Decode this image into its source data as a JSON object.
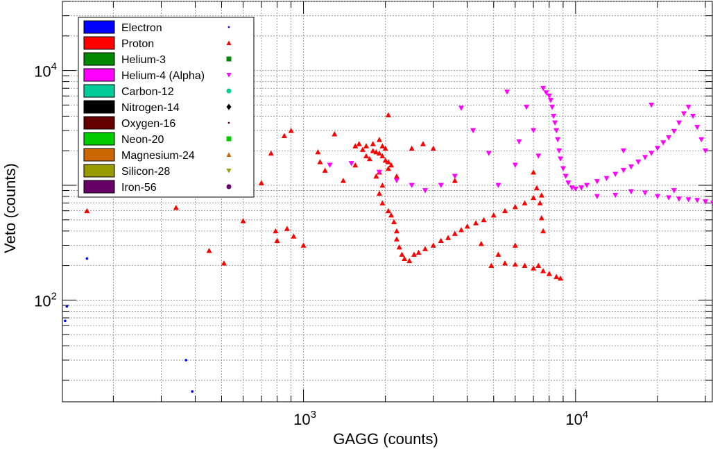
{
  "chart_data": {
    "type": "scatter",
    "xlabel": "GAGG (counts)",
    "ylabel": "Veto (counts)",
    "xscale": "log",
    "yscale": "log",
    "xlim": [
      130,
      32000
    ],
    "ylim": [
      13,
      40000
    ],
    "grid": true,
    "legend_position": "top-left",
    "x_major_ticks": [
      {
        "value": 1000,
        "base": "10",
        "exp": "3"
      },
      {
        "value": 10000,
        "base": "10",
        "exp": "4"
      }
    ],
    "y_major_ticks": [
      {
        "value": 100,
        "base": "10",
        "exp": "2"
      },
      {
        "value": 10000,
        "base": "10",
        "exp": "4"
      }
    ],
    "series": [
      {
        "name": "Electron",
        "color": "#0000ff",
        "marker": "dot",
        "points": [
          [
            160,
            230
          ],
          [
            135,
            88
          ],
          [
            133,
            66
          ],
          [
            370,
            30
          ],
          [
            390,
            16
          ]
        ]
      },
      {
        "name": "Proton",
        "color": "#ff0000",
        "marker": "triangle-up",
        "points": [
          [
            160,
            600
          ],
          [
            340,
            640
          ],
          [
            450,
            270
          ],
          [
            510,
            210
          ],
          [
            600,
            490
          ],
          [
            700,
            1050
          ],
          [
            760,
            1900
          ],
          [
            790,
            400
          ],
          [
            800,
            330
          ],
          [
            850,
            2700
          ],
          [
            870,
            420
          ],
          [
            900,
            3000
          ],
          [
            920,
            360
          ],
          [
            1000,
            300
          ],
          [
            1130,
            1950
          ],
          [
            1150,
            1600
          ],
          [
            1200,
            1350
          ],
          [
            1300,
            2800
          ],
          [
            1400,
            1100
          ],
          [
            2050,
            4100
          ],
          [
            1550,
            2200
          ],
          [
            1600,
            2300
          ],
          [
            1700,
            2200
          ],
          [
            1800,
            2000
          ],
          [
            1850,
            1950
          ],
          [
            1900,
            1900
          ],
          [
            1950,
            1800
          ],
          [
            2000,
            1650
          ],
          [
            2050,
            1600
          ],
          [
            1800,
            2300
          ],
          [
            1900,
            2500
          ],
          [
            1950,
            2200
          ],
          [
            2000,
            2100
          ],
          [
            1700,
            1800
          ],
          [
            1750,
            1700
          ],
          [
            1650,
            2050
          ],
          [
            2100,
            1500
          ],
          [
            2050,
            1400
          ],
          [
            1900,
            1300
          ],
          [
            1850,
            1200
          ],
          [
            1950,
            1000
          ],
          [
            1900,
            850
          ],
          [
            1950,
            700
          ],
          [
            2050,
            600
          ],
          [
            2100,
            550
          ],
          [
            2150,
            480
          ],
          [
            2200,
            400
          ],
          [
            2200,
            340
          ],
          [
            2250,
            290
          ],
          [
            2300,
            250
          ],
          [
            2350,
            230
          ],
          [
            2450,
            220
          ],
          [
            2550,
            250
          ],
          [
            2650,
            260
          ],
          [
            2800,
            280
          ],
          [
            3000,
            300
          ],
          [
            3200,
            330
          ],
          [
            3400,
            350
          ],
          [
            3600,
            380
          ],
          [
            3800,
            410
          ],
          [
            4000,
            440
          ],
          [
            4300,
            470
          ],
          [
            4600,
            500
          ],
          [
            5000,
            550
          ],
          [
            5500,
            600
          ],
          [
            6000,
            650
          ],
          [
            6500,
            700
          ],
          [
            7000,
            780
          ],
          [
            7500,
            820
          ],
          [
            2500,
            2100
          ],
          [
            2750,
            2300
          ],
          [
            3600,
            1100
          ],
          [
            2200,
            1200
          ],
          [
            1550,
            1500
          ],
          [
            4900,
            200
          ],
          [
            5500,
            210
          ],
          [
            6000,
            205
          ],
          [
            6500,
            200
          ],
          [
            7000,
            190
          ],
          [
            7300,
            200
          ],
          [
            7600,
            180
          ],
          [
            8000,
            170
          ],
          [
            8500,
            160
          ],
          [
            8800,
            155
          ],
          [
            7000,
            1300
          ],
          [
            7200,
            950
          ],
          [
            7400,
            700
          ],
          [
            7500,
            520
          ],
          [
            7600,
            400
          ],
          [
            6000,
            300
          ],
          [
            5200,
            250
          ],
          [
            4500,
            310
          ],
          [
            3000,
            2100
          ]
        ]
      },
      {
        "name": "Helium-3",
        "color": "#008800",
        "marker": "square",
        "points": []
      },
      {
        "name": "Helium-4 (Alpha)",
        "color": "#ff00ff",
        "marker": "triangle-down",
        "points": [
          [
            1250,
            1500
          ],
          [
            1500,
            1550
          ],
          [
            1900,
            1300
          ],
          [
            2200,
            1100
          ],
          [
            2500,
            1000
          ],
          [
            2800,
            900
          ],
          [
            3200,
            1000
          ],
          [
            3600,
            1200
          ],
          [
            3800,
            4700
          ],
          [
            4200,
            3000
          ],
          [
            4800,
            1900
          ],
          [
            5200,
            1000
          ],
          [
            5600,
            6500
          ],
          [
            6000,
            1500
          ],
          [
            6200,
            2400
          ],
          [
            6600,
            4800
          ],
          [
            7000,
            3000
          ],
          [
            7300,
            1800
          ],
          [
            7600,
            7000
          ],
          [
            7800,
            6400
          ],
          [
            8000,
            6000
          ],
          [
            8100,
            5500
          ],
          [
            8200,
            4800
          ],
          [
            8300,
            4000
          ],
          [
            8400,
            3500
          ],
          [
            8500,
            3000
          ],
          [
            8600,
            2500
          ],
          [
            8700,
            2000
          ],
          [
            8800,
            1700
          ],
          [
            9000,
            1400
          ],
          [
            9200,
            1200
          ],
          [
            9400,
            1050
          ],
          [
            9700,
            950
          ],
          [
            10000,
            930
          ],
          [
            10500,
            950
          ],
          [
            11000,
            1000
          ],
          [
            12000,
            1080
          ],
          [
            13000,
            1150
          ],
          [
            14000,
            1250
          ],
          [
            15000,
            1350
          ],
          [
            16000,
            1450
          ],
          [
            17000,
            1600
          ],
          [
            18000,
            1750
          ],
          [
            19000,
            1900
          ],
          [
            20000,
            2100
          ],
          [
            21000,
            2350
          ],
          [
            22000,
            2600
          ],
          [
            23000,
            2950
          ],
          [
            24000,
            3500
          ],
          [
            25000,
            4200
          ],
          [
            26000,
            4800
          ],
          [
            27000,
            4000
          ],
          [
            28000,
            3200
          ],
          [
            29000,
            2500
          ],
          [
            30000,
            2000
          ],
          [
            12000,
            800
          ],
          [
            14000,
            820
          ],
          [
            16000,
            880
          ],
          [
            18000,
            860
          ],
          [
            20000,
            800
          ],
          [
            22000,
            780
          ],
          [
            24000,
            760
          ],
          [
            26000,
            750
          ],
          [
            28000,
            740
          ],
          [
            30000,
            720
          ],
          [
            32000,
            700
          ],
          [
            19000,
            5000
          ],
          [
            23000,
            900
          ],
          [
            15000,
            2000
          ]
        ]
      },
      {
        "name": "Carbon-12",
        "color": "#00cc99",
        "marker": "circle",
        "points": []
      },
      {
        "name": "Nitrogen-14",
        "color": "#000000",
        "marker": "diamond",
        "points": []
      },
      {
        "name": "Oxygen-16",
        "color": "#660000",
        "marker": "dot",
        "points": []
      },
      {
        "name": "Neon-20",
        "color": "#00cc00",
        "marker": "square",
        "points": []
      },
      {
        "name": "Magnesium-24",
        "color": "#cc6600",
        "marker": "triangle-up",
        "points": []
      },
      {
        "name": "Silicon-28",
        "color": "#999900",
        "marker": "triangle-down",
        "points": []
      },
      {
        "name": "Iron-56",
        "color": "#660066",
        "marker": "circle",
        "points": []
      }
    ]
  }
}
